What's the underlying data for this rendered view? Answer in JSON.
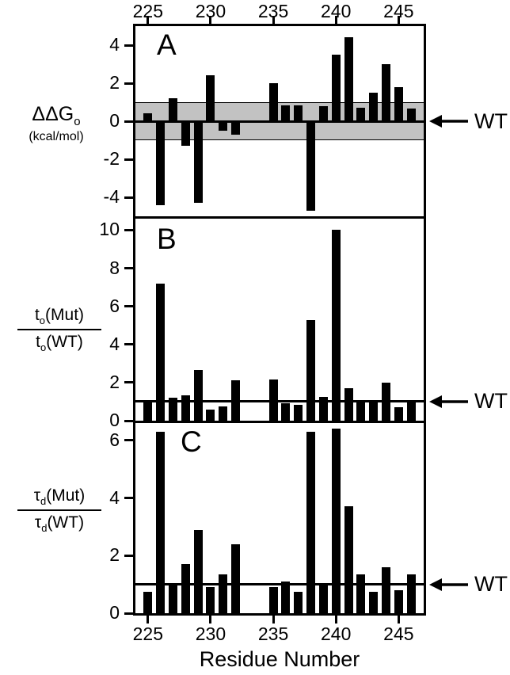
{
  "x_axis": {
    "title": "Residue Number",
    "tick_labels": [
      "225",
      "230",
      "235",
      "240",
      "245"
    ],
    "tick_values": [
      225,
      230,
      235,
      240,
      245
    ],
    "xlim": [
      224,
      247
    ]
  },
  "wt": {
    "label": "WT"
  },
  "panel_labels": {
    "a": "A",
    "b": "B",
    "c": "C"
  },
  "y_labels": {
    "a_main": "ΔΔG",
    "a_sub": "o",
    "a_units": "(kcal/mol)",
    "b_num_base": "t",
    "b_num_sub": "o",
    "b_num_rest": "(Mut)",
    "b_den_base": "t",
    "b_den_sub": "o",
    "b_den_rest": "(WT)",
    "c_num_base": "τ",
    "c_num_sub": "d",
    "c_num_rest": "(Mut)",
    "c_den_base": "τ",
    "c_den_sub": "d",
    "c_den_rest": "(WT)"
  },
  "chart_data": [
    {
      "type": "bar",
      "panel": "A",
      "title": "A",
      "xlabel": "Residue Number",
      "ylabel": "ΔΔGo (kcal/mol)",
      "x": [
        225,
        226,
        227,
        228,
        229,
        230,
        231,
        232,
        235,
        236,
        237,
        238,
        239,
        240,
        241,
        242,
        243,
        244,
        245,
        246
      ],
      "values": [
        0.4,
        -4.4,
        1.2,
        -1.3,
        -4.3,
        2.4,
        -0.5,
        -0.7,
        2.0,
        0.85,
        0.85,
        -4.7,
        0.8,
        3.5,
        4.4,
        0.7,
        1.5,
        3.0,
        1.8,
        0.65
      ],
      "xlim": [
        224,
        247
      ],
      "ylim": [
        -5,
        5
      ],
      "yticks": [
        4,
        2,
        0,
        -2,
        -4
      ],
      "baseline": 0,
      "reference_band": [
        -1,
        1
      ],
      "reference_line": 0,
      "wt_value": 0,
      "bar_color": "#000000",
      "band_color": "#c2c2c2",
      "grid": false,
      "legend": "none"
    },
    {
      "type": "bar",
      "panel": "B",
      "title": "B",
      "xlabel": "Residue Number",
      "ylabel": "to(Mut)/to(WT)",
      "x": [
        225,
        226,
        227,
        228,
        229,
        230,
        231,
        232,
        235,
        236,
        237,
        238,
        239,
        240,
        241,
        242,
        243,
        244,
        245,
        246
      ],
      "values": [
        1.0,
        7.2,
        1.2,
        1.35,
        2.65,
        0.6,
        0.75,
        2.1,
        2.15,
        0.9,
        0.85,
        5.3,
        1.25,
        10.0,
        1.7,
        1.1,
        1.05,
        2.0,
        0.7,
        1.0
      ],
      "xlim": [
        224,
        247
      ],
      "ylim": [
        0,
        10.6
      ],
      "yticks": [
        10,
        8,
        6,
        4,
        2,
        0
      ],
      "baseline": 0,
      "reference_line": 1,
      "wt_value": 1,
      "bar_color": "#000000",
      "grid": false,
      "legend": "none"
    },
    {
      "type": "bar",
      "panel": "C",
      "title": "C",
      "xlabel": "Residue Number",
      "ylabel": "τd(Mut)/τd(WT)",
      "x": [
        225,
        226,
        227,
        228,
        229,
        230,
        231,
        232,
        235,
        236,
        237,
        238,
        239,
        240,
        241,
        242,
        243,
        244,
        245,
        246
      ],
      "values": [
        0.75,
        6.3,
        1.0,
        1.7,
        2.9,
        0.9,
        1.35,
        2.4,
        0.9,
        1.1,
        0.75,
        6.3,
        1.0,
        6.4,
        3.7,
        1.35,
        0.75,
        1.6,
        0.8,
        1.35
      ],
      "xlim": [
        224,
        247
      ],
      "ylim": [
        0,
        6.6
      ],
      "yticks": [
        6,
        4,
        2,
        0
      ],
      "baseline": 0,
      "reference_line": 1,
      "wt_value": 1,
      "bar_color": "#000000",
      "grid": false,
      "legend": "none"
    }
  ]
}
